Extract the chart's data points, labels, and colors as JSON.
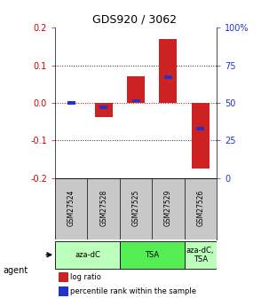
{
  "title": "GDS920 / 3062",
  "samples": [
    "GSM27524",
    "GSM27528",
    "GSM27525",
    "GSM27529",
    "GSM27526"
  ],
  "log_ratios": [
    0.0,
    -0.038,
    0.07,
    0.17,
    -0.175
  ],
  "percentile_ranks": [
    0.5,
    0.47,
    0.515,
    0.67,
    0.33
  ],
  "ylim": [
    -0.2,
    0.2
  ],
  "yticks_left": [
    -0.2,
    -0.1,
    0.0,
    0.1,
    0.2
  ],
  "yticks_right": [
    0,
    25,
    50,
    75,
    100
  ],
  "bar_color": "#cc2222",
  "rank_color": "#2233cc",
  "zero_line_color": "#cc0000",
  "agent_groups": [
    {
      "label": "aza-dC",
      "span": [
        0,
        2
      ],
      "color": "#bbffbb"
    },
    {
      "label": "TSA",
      "span": [
        2,
        4
      ],
      "color": "#55ee55"
    },
    {
      "label": "aza-dC,\nTSA",
      "span": [
        4,
        5
      ],
      "color": "#bbffbb"
    }
  ],
  "legend_bar_label": "log ratio",
  "legend_rank_label": "percentile rank within the sample",
  "bg_color": "#ffffff",
  "sample_bg": "#c8c8c8"
}
